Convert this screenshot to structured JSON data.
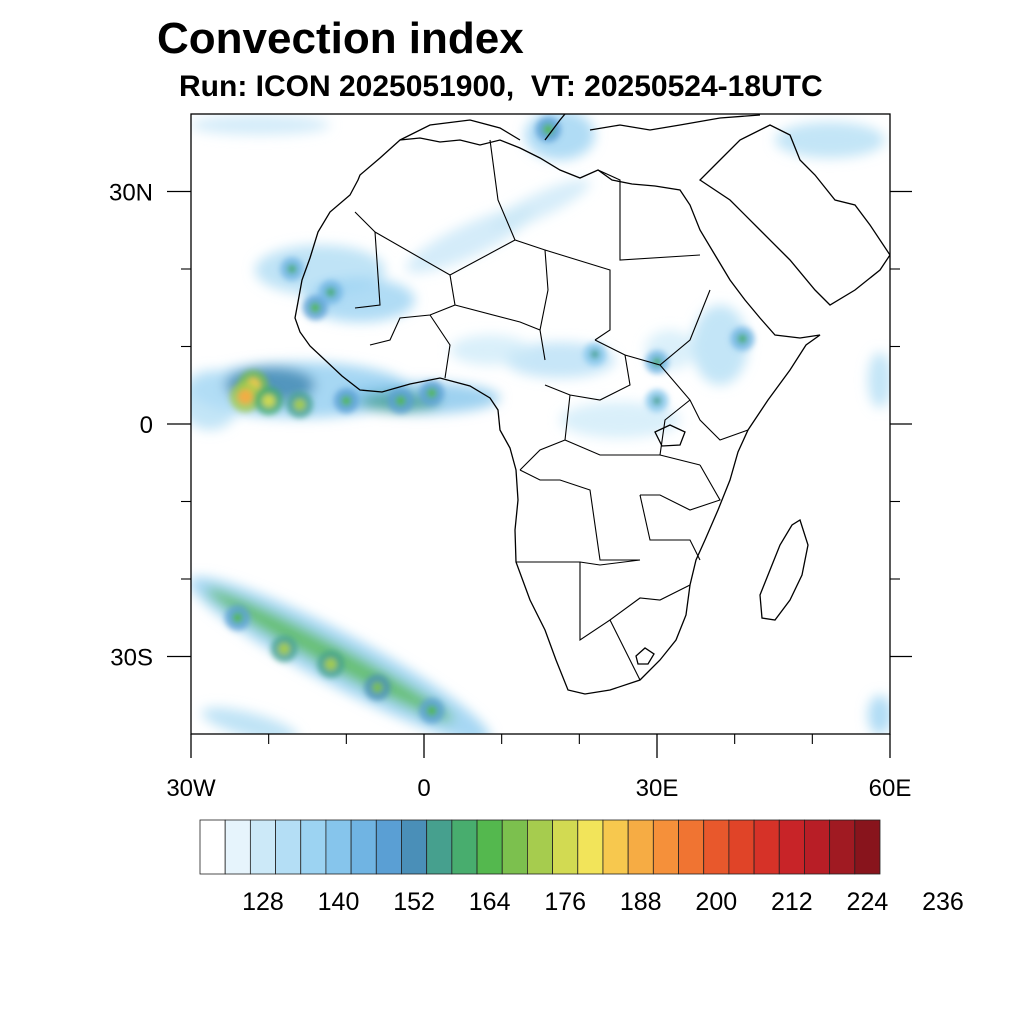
{
  "title": "Convection index",
  "subtitle": "Run: ICON 2025051900,  VT: 20250524-18UTC",
  "map": {
    "lon_range": [
      -30,
      60
    ],
    "lat_range": [
      -40,
      40
    ],
    "x_ticks": [
      {
        "value": -30,
        "label": "30W"
      },
      {
        "value": 0,
        "label": "0"
      },
      {
        "value": 30,
        "label": "30E"
      },
      {
        "value": 60,
        "label": "60E"
      }
    ],
    "y_ticks": [
      {
        "value": 30,
        "label": "30N"
      },
      {
        "value": 0,
        "label": "0"
      },
      {
        "value": -30,
        "label": "30S"
      }
    ],
    "minor_x_ticks": [
      -20,
      -10,
      10,
      20,
      40,
      50
    ],
    "minor_y_ticks": [
      20,
      10,
      -10,
      -20
    ]
  },
  "colorbar": {
    "colors": [
      "#ffffff",
      "#e6f4fc",
      "#cce9f8",
      "#b4def5",
      "#9cd3f2",
      "#86c5ec",
      "#70b4e3",
      "#5a9fd4",
      "#4a8fb8",
      "#46a08e",
      "#48ad6e",
      "#54b84e",
      "#7cc04e",
      "#a6cc4e",
      "#d2da52",
      "#f2e45a",
      "#f7c84e",
      "#f6ac44",
      "#f5903a",
      "#f07432",
      "#e8582c",
      "#e04428",
      "#d63228",
      "#c82428",
      "#b81e26",
      "#a01a22",
      "#88141c"
    ],
    "labels": [
      "128",
      "140",
      "152",
      "164",
      "176",
      "188",
      "200",
      "212",
      "224",
      "236"
    ],
    "label_box_index": [
      2,
      5,
      8,
      11,
      14,
      17,
      20,
      23,
      26,
      29
    ]
  },
  "convection_cells": [
    {
      "lon": -22,
      "lat": 5,
      "intensity": 0.85
    },
    {
      "lon": -23,
      "lat": 3.5,
      "intensity": 0.9
    },
    {
      "lon": -20,
      "lat": 3,
      "intensity": 0.7
    },
    {
      "lon": -16,
      "lat": 2.5,
      "intensity": 0.55
    },
    {
      "lon": -10,
      "lat": 3,
      "intensity": 0.4
    },
    {
      "lon": -3,
      "lat": 3,
      "intensity": 0.45
    },
    {
      "lon": 1,
      "lat": 4,
      "intensity": 0.4
    },
    {
      "lon": -14,
      "lat": 15,
      "intensity": 0.4
    },
    {
      "lon": -12,
      "lat": 17,
      "intensity": 0.35
    },
    {
      "lon": -17,
      "lat": 20,
      "intensity": 0.3
    },
    {
      "lon": 30,
      "lat": 8,
      "intensity": 0.3
    },
    {
      "lon": 22,
      "lat": 9,
      "intensity": 0.25
    },
    {
      "lon": 41,
      "lat": 11,
      "intensity": 0.35
    },
    {
      "lon": 16,
      "lat": 38,
      "intensity": 0.45
    },
    {
      "lon": 30,
      "lat": 3,
      "intensity": 0.25
    },
    {
      "lon": -24,
      "lat": -25,
      "intensity": 0.45
    },
    {
      "lon": -18,
      "lat": -29,
      "intensity": 0.55
    },
    {
      "lon": -12,
      "lat": -31,
      "intensity": 0.6
    },
    {
      "lon": -6,
      "lat": -34,
      "intensity": 0.5
    },
    {
      "lon": 1,
      "lat": -37,
      "intensity": 0.45
    }
  ]
}
